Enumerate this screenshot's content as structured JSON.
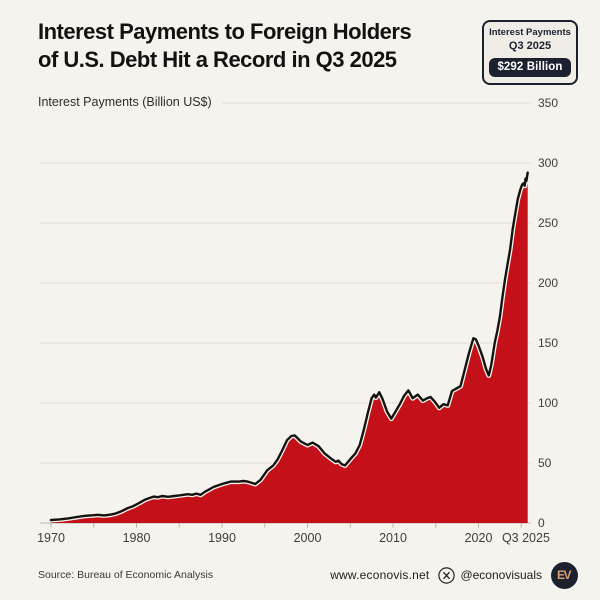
{
  "title": {
    "line1": "Interest Payments to Foreign Holders",
    "line2": "of U.S. Debt Hit a Record in Q3 2025"
  },
  "subtitle": "Interest Payments (Billion US$)",
  "badge": {
    "line1": "Interest Payments",
    "line2": "Q3 2025",
    "value": "$292 Billion"
  },
  "footer": {
    "source": "Source: Bureau of Economic Analysis",
    "website": "www.econovis.net",
    "handle": "@econovisuals",
    "logo_text": "EV"
  },
  "colors": {
    "background": "#f5f3ed",
    "area_fill": "#c41019",
    "line": "#15130f",
    "line_halo": "#f5f3ed",
    "gridline": "#e0dcd3",
    "axis": "#b8b4ab",
    "badge_dark": "#1c2130",
    "logo_letters": "#dfa070"
  },
  "chart_data": {
    "type": "area",
    "title": "Interest Payments to Foreign Holders of U.S. Debt Hit a Record in Q3 2025",
    "ylabel": "Interest Payments (Billion US$)",
    "xlabel": "",
    "grid": "horizontal only",
    "legend": "none",
    "ylim": [
      0,
      350
    ],
    "xlim": [
      1970,
      2025.75
    ],
    "y_ticks": [
      0,
      50,
      100,
      150,
      200,
      250,
      300,
      350
    ],
    "x_tick_labels": [
      {
        "label": "1970",
        "year": 1970
      },
      {
        "label": "1980",
        "year": 1980
      },
      {
        "label": "1990",
        "year": 1990
      },
      {
        "label": "2000",
        "year": 2000
      },
      {
        "label": "2010",
        "year": 2010
      },
      {
        "label": "2020",
        "year": 2020
      },
      {
        "label": "Q3 2025",
        "year": 2025.55
      }
    ],
    "minor_x_ticks_every_years": 5,
    "end_label": {
      "period": "Q3 2025",
      "value": 292
    },
    "series_name": "Interest payments to foreign holders of U.S. debt (Billion US$)",
    "x": [
      1970,
      1971,
      1972,
      1973,
      1974,
      1975,
      1975.5,
      1976.2,
      1977,
      1977.6,
      1978.3,
      1979,
      1979.6,
      1980.4,
      1981,
      1981.4,
      1982,
      1982.5,
      1983,
      1983.7,
      1984.4,
      1985,
      1986,
      1986.5,
      1987,
      1987.5,
      1988,
      1989,
      1990,
      1990.5,
      1991,
      1992,
      1992.5,
      1993,
      1993.9,
      1994.5,
      1995.3,
      1996,
      1996.5,
      1997,
      1997.6,
      1998.1,
      1998.5,
      1999.2,
      2000,
      2000.6,
      2001.3,
      2002,
      2002.7,
      2003.3,
      2003.6,
      2004,
      2004.4,
      2005.1,
      2005.6,
      2006.1,
      2006.6,
      2007.1,
      2007.5,
      2007.8,
      2008,
      2008.4,
      2008.8,
      2009.3,
      2009.8,
      2010.3,
      2010.8,
      2011.3,
      2011.8,
      2012.3,
      2012.9,
      2013.5,
      2014,
      2014.4,
      2014.9,
      2015.4,
      2015.9,
      2016.4,
      2016.9,
      2017.4,
      2017.9,
      2018.4,
      2018.9,
      2019.4,
      2019.7,
      2020,
      2020.5,
      2020.9,
      2021.2,
      2021.5,
      2021.9,
      2022.2,
      2022.5,
      2022.8,
      2023.1,
      2023.4,
      2023.7,
      2024,
      2024.3,
      2024.6,
      2024.9,
      2025.1,
      2025.25,
      2025.4,
      2025.5,
      2025.6,
      2025.75
    ],
    "values": [
      2.5,
      3,
      3.8,
      5,
      6,
      6.5,
      6.8,
      6.3,
      7,
      8,
      10,
      12.5,
      14,
      17,
      19.5,
      20.5,
      22,
      21.5,
      22.5,
      21.8,
      22.5,
      23,
      24,
      23.5,
      24.5,
      23.5,
      26,
      30,
      32.5,
      33.5,
      34.5,
      34.5,
      35,
      34.5,
      32.5,
      36,
      44,
      48,
      53,
      60,
      69,
      72.5,
      73,
      68,
      65,
      67,
      64,
      58,
      54,
      51,
      52,
      49,
      48,
      54,
      58,
      65,
      78,
      93,
      104,
      107,
      104.5,
      109,
      103,
      93,
      87,
      93,
      99,
      106,
      110.5,
      104,
      107,
      102,
      104,
      105,
      101,
      96,
      99,
      98,
      110,
      112,
      114,
      128,
      142,
      154,
      153,
      148,
      138,
      128,
      123,
      132,
      150,
      160,
      172,
      188,
      203,
      216,
      228,
      245,
      258,
      270,
      278,
      282,
      283,
      281,
      287,
      285,
      292
    ]
  }
}
